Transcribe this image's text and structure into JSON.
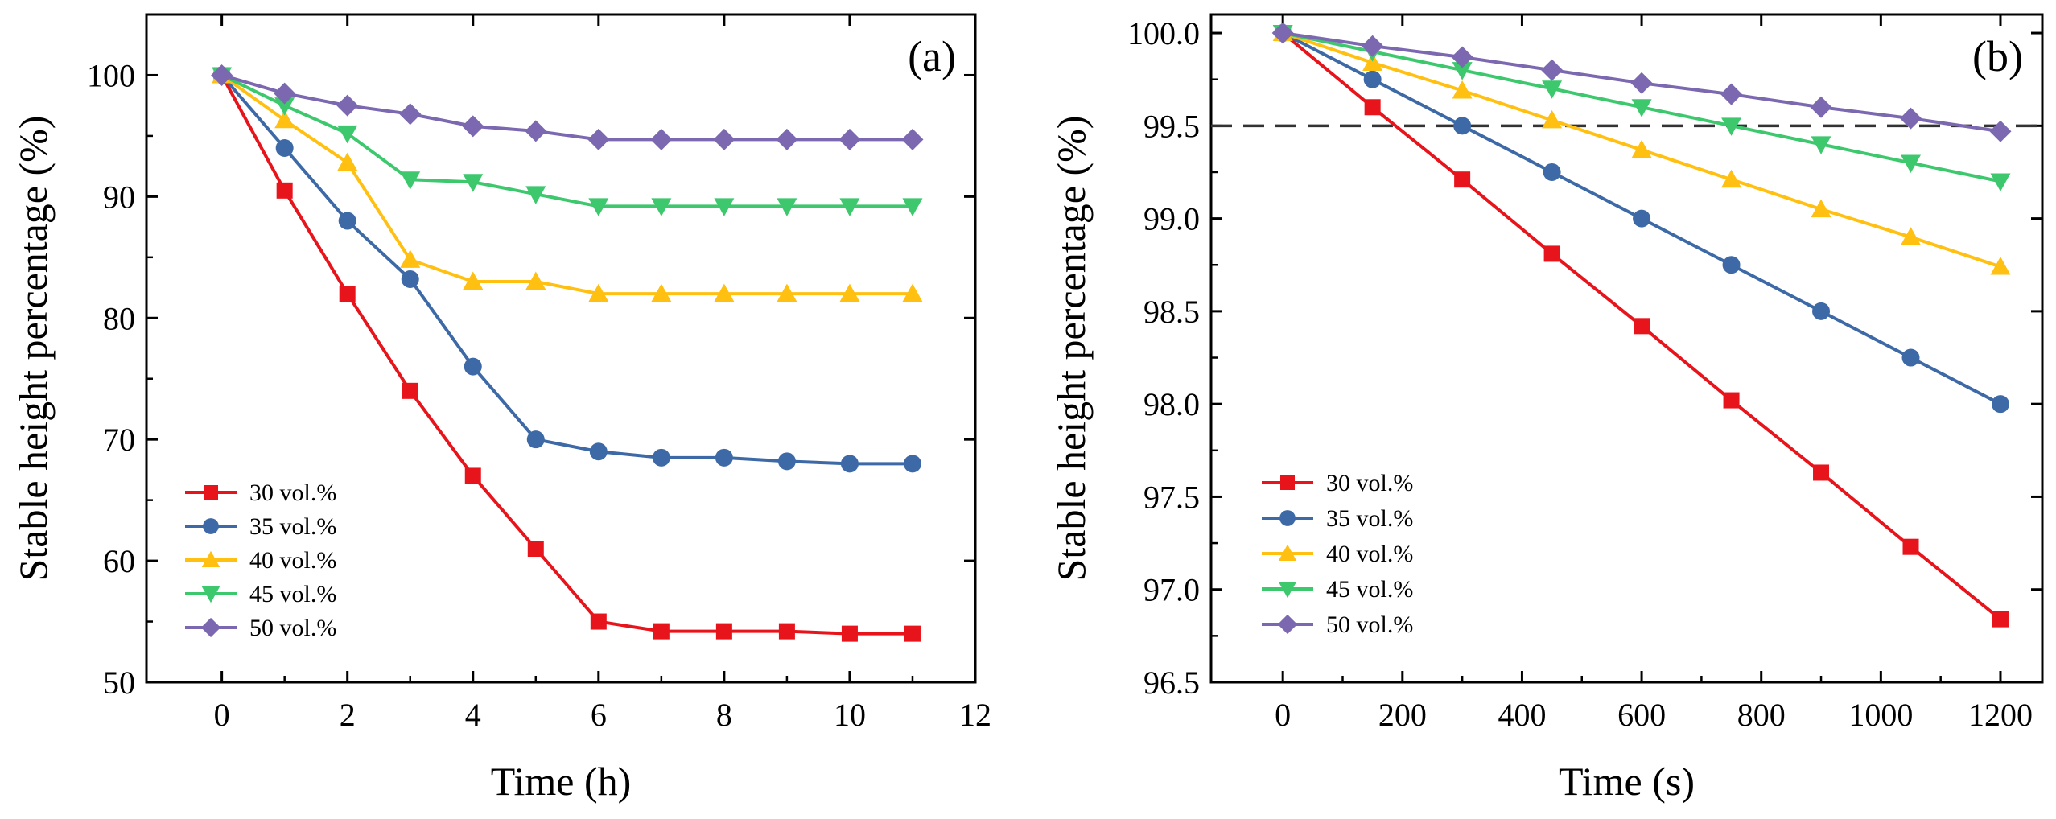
{
  "chart_data": [
    {
      "type": "line",
      "panel_label": "(a)",
      "xlabel": "Time (h)",
      "ylabel": "Stable height percentage (%)",
      "xlim": [
        -1.2,
        12
      ],
      "ylim": [
        50,
        105
      ],
      "xticks": [
        0,
        2,
        4,
        6,
        8,
        10,
        12
      ],
      "xtick_labels": [
        "0",
        "2",
        "4",
        "6",
        "8",
        "10",
        "12"
      ],
      "yticks": [
        50,
        60,
        70,
        80,
        90,
        100
      ],
      "ytick_labels": [
        "50",
        "60",
        "70",
        "80",
        "90",
        "100"
      ],
      "x": [
        0,
        1,
        2,
        3,
        4,
        5,
        6,
        7,
        8,
        9,
        10,
        11
      ],
      "legend_position": "lower-left",
      "reference_line": null,
      "series": [
        {
          "name": "30 vol.%",
          "marker": "square",
          "color": "#e8141c",
          "values": [
            100,
            90.5,
            82,
            74,
            67,
            61,
            55,
            54.2,
            54.2,
            54.2,
            54,
            54
          ]
        },
        {
          "name": "35 vol.%",
          "marker": "circle",
          "color": "#3d6aa6",
          "values": [
            100,
            94,
            88,
            83.2,
            76,
            70,
            69,
            68.5,
            68.5,
            68.2,
            68,
            68
          ]
        },
        {
          "name": "40 vol.%",
          "marker": "triangle-up",
          "color": "#ffc012",
          "values": [
            100,
            96.3,
            92.8,
            84.8,
            83,
            83,
            82,
            82,
            82,
            82,
            82,
            82
          ]
        },
        {
          "name": "45 vol.%",
          "marker": "triangle-down",
          "color": "#3dc86e",
          "values": [
            100,
            97.5,
            95.2,
            91.4,
            91.2,
            90.2,
            89.2,
            89.2,
            89.2,
            89.2,
            89.2,
            89.2
          ]
        },
        {
          "name": "50 vol.%",
          "marker": "diamond",
          "color": "#7b68b0",
          "values": [
            100,
            98.5,
            97.5,
            96.8,
            95.8,
            95.4,
            94.7,
            94.7,
            94.7,
            94.7,
            94.7,
            94.7
          ]
        }
      ]
    },
    {
      "type": "line",
      "panel_label": "(b)",
      "xlabel": "Time (s)",
      "ylabel": "Stable height percentage (%)",
      "xlim": [
        -120,
        1270
      ],
      "ylim": [
        96.5,
        100.1
      ],
      "xticks": [
        0,
        200,
        400,
        600,
        800,
        1000,
        1200
      ],
      "xtick_labels": [
        "0",
        "200",
        "400",
        "600",
        "800",
        "1000",
        "1200"
      ],
      "yticks": [
        96.5,
        97.0,
        97.5,
        98.0,
        98.5,
        99.0,
        99.5,
        100.0
      ],
      "ytick_labels": [
        "96.5",
        "97.0",
        "97.5",
        "98.0",
        "98.5",
        "99.0",
        "99.5",
        "100.0"
      ],
      "x": [
        0,
        150,
        300,
        450,
        600,
        750,
        900,
        1050,
        1200
      ],
      "legend_position": "lower-left",
      "reference_line": {
        "y": 99.5,
        "style": "dashed"
      },
      "series": [
        {
          "name": "30 vol.%",
          "marker": "square",
          "color": "#e8141c",
          "values": [
            100,
            99.6,
            99.21,
            98.81,
            98.42,
            98.02,
            97.63,
            97.23,
            96.84
          ]
        },
        {
          "name": "35 vol.%",
          "marker": "circle",
          "color": "#3d6aa6",
          "values": [
            100,
            99.75,
            99.5,
            99.25,
            99.0,
            98.75,
            98.5,
            98.25,
            98.0
          ]
        },
        {
          "name": "40 vol.%",
          "marker": "triangle-up",
          "color": "#ffc012",
          "values": [
            100,
            99.84,
            99.69,
            99.53,
            99.37,
            99.21,
            99.05,
            98.9,
            98.74
          ]
        },
        {
          "name": "45 vol.%",
          "marker": "triangle-down",
          "color": "#3dc86e",
          "values": [
            100,
            99.9,
            99.8,
            99.7,
            99.6,
            99.5,
            99.4,
            99.3,
            99.2
          ]
        },
        {
          "name": "50 vol.%",
          "marker": "diamond",
          "color": "#7b68b0",
          "values": [
            100,
            99.93,
            99.87,
            99.8,
            99.73,
            99.67,
            99.6,
            99.54,
            99.47
          ]
        }
      ]
    }
  ]
}
